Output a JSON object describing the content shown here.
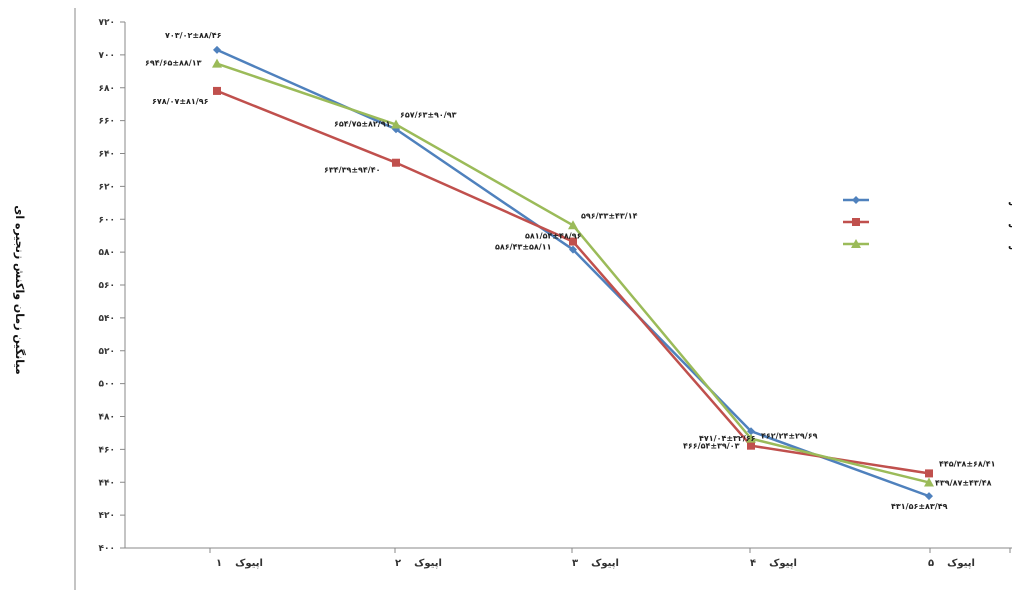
{
  "chart_data": {
    "type": "line",
    "ylabel": "میانگین زمان واکنش زنجیره ای",
    "ylim": [
      400,
      720
    ],
    "yticks": [
      "۴۰۰",
      "۴۲۰",
      "۴۴۰",
      "۴۶۰",
      "۴۸۰",
      "۵۰۰",
      "۵۲۰",
      "۵۴۰",
      "۵۶۰",
      "۵۸۰",
      "۶۰۰",
      "۶۲۰",
      "۶۴۰",
      "۶۶۰",
      "۶۸۰",
      "۷۰۰",
      "۷۲۰"
    ],
    "categories": [
      {
        "name": "اپیوک",
        "num": "۱"
      },
      {
        "name": "اپیوک",
        "num": "۲"
      },
      {
        "name": "اپیوک",
        "num": "۳"
      },
      {
        "name": "اپیوک",
        "num": "۴"
      },
      {
        "name": "اپیوک",
        "num": "۵"
      }
    ],
    "grid": false,
    "legend": "right",
    "series": [
      {
        "name": "گروه ۶ ساعت تمرین آسایی",
        "color": "#4F81BD",
        "marker": "diamond",
        "values": [
          703.02,
          654.75,
          581.54,
          471.04,
          431.56
        ],
        "labels": [
          "۷۰۳/۰۲±۸۸/۴۶",
          "۶۵۴/۷۵±۸۲/۹۱",
          "۵۸۱/۵۴±۴۸/۹۶",
          "۴۷۱/۰۴±۳۲/۶۶",
          "۴۳۱/۵۶±۸۳/۴۹"
        ]
      },
      {
        "name": "گروه ۲۴ ساعت تمرین آسایی",
        "color": "#C0504D",
        "marker": "square",
        "values": [
          678.07,
          634.39,
          586.43,
          462.24,
          445.38
        ],
        "labels": [
          "۶۷۸/۰۷±۸۱/۹۶",
          "۶۳۴/۳۹±۹۴/۴۰",
          "۵۸۶/۴۳±۵۸/۱۱",
          "۴۶۲/۲۴±۲۹/۶۹",
          "۴۴۵/۳۸±۶۸/۴۱"
        ]
      },
      {
        "name": "گروه ۷۲ ساعت تمرین آسایی",
        "color": "#9BBB59",
        "marker": "triangle",
        "values": [
          694.65,
          657.63,
          596.33,
          466.54,
          439.87
        ],
        "labels": [
          "۶۹۴/۶۵±۸۸/۱۳",
          "۶۵۷/۶۳±۹۰/۹۳",
          "۵۹۶/۳۳±۴۳/۱۴",
          "۴۶۶/۵۴±۳۹/۰۳",
          "۴۳۹/۸۷±۴۳/۴۸"
        ]
      }
    ]
  }
}
